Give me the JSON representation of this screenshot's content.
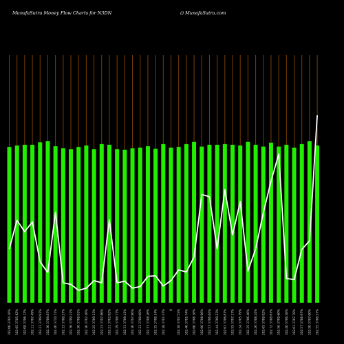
{
  "header": {
    "title": "MunafaSutra  Money Flow  Charts for N3DN",
    "credit": "() MunafaSutra.com"
  },
  "colors": {
    "background": "#000000",
    "bar": "#22ee00",
    "line": "#ffffff",
    "grid": "#7a3f00"
  },
  "chart_data": {
    "type": "bar",
    "grid": "vertical",
    "categories": [
      "102.06 3704.16%",
      "102.05 3705.62%",
      "102.08 3706.17%",
      "102.11 3707.49%",
      "102.21 3709.91%",
      "102.36 3709.87%",
      "102.40 3710.71%",
      "102.33 3708.27%",
      "102.36 3709.21%",
      "102.36 3708.81%",
      "102.30 3707.46%",
      "102.25 3709.13%",
      "102.23 3707.86%",
      "102.21 3703.92%",
      "102.29 3708.77%",
      "102.31 3709.41%",
      "102.30 3707.86%",
      "102.33 3708.08%",
      "102.37 3708.26%",
      "102.35 3709.14%",
      "102.38 3707.47%",
      "0",
      "102.38 3707.53%",
      "102.40 3705.74%",
      "102.60 3706.38%",
      "102.66 3706.96%",
      "102.57 3706.84%",
      "102.44 3709.23%",
      "102.61 3706.87%",
      "102.55 3707.17%",
      "102.24 3705.79%",
      "102.25 3706.46%",
      "102.26 3708.24%",
      "102.65 3709.82%",
      "102.72 3708.67%",
      "102.56 3709.60%",
      "102.40 3706.38%",
      "102.61 3707.78%",
      "102.57 3706.97%",
      "102.50 3707.00%",
      "102.55 3708.27%"
    ],
    "series": [
      {
        "type": "bar",
        "values": [
          189,
          192,
          193,
          193,
          198,
          200,
          191,
          187,
          185,
          189,
          192,
          185,
          195,
          193,
          185,
          184,
          187,
          188,
          191,
          186,
          195,
          188,
          189,
          195,
          199,
          190,
          193,
          193,
          195,
          193,
          192,
          199,
          193,
          190,
          197,
          190,
          193,
          188,
          195,
          200,
          192
        ]
      },
      {
        "type": "line",
        "values": [
          0,
          53,
          32,
          50,
          -24,
          -44,
          68,
          -63,
          -66,
          -77,
          -73,
          -59,
          -63,
          54,
          -63,
          -60,
          -73,
          -70,
          -51,
          -50,
          -69,
          -59,
          -39,
          -43,
          -15,
          101,
          97,
          0,
          110,
          26,
          88,
          -41,
          0,
          67,
          126,
          176,
          -55,
          -57,
          -1,
          15,
          248
        ]
      }
    ],
    "ylim": [
      -100,
      360
    ]
  }
}
